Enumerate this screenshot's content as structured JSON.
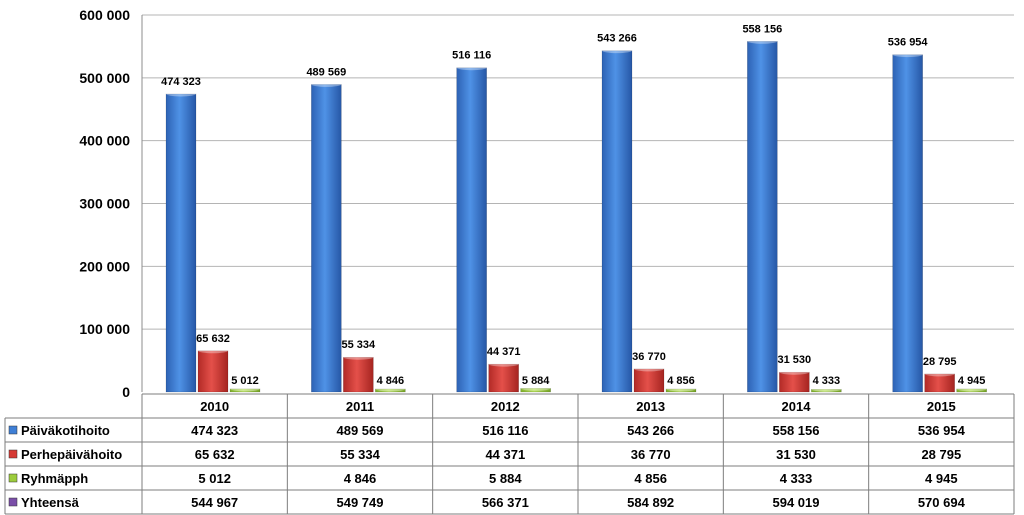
{
  "chart_data": {
    "type": "bar",
    "categories": [
      "2010",
      "2011",
      "2012",
      "2013",
      "2014",
      "2015"
    ],
    "ylim": [
      0,
      600000
    ],
    "yticks": [
      0,
      100000,
      200000,
      300000,
      400000,
      500000,
      600000
    ],
    "ytick_labels": [
      "0",
      "100 000",
      "200 000",
      "300 000",
      "400 000",
      "500 000",
      "600 000"
    ],
    "grid": true,
    "legend": "data-table",
    "series": [
      {
        "name": "Päiväkotihoito",
        "color": "#3f7fd6",
        "values": [
          474323,
          489569,
          516116,
          543266,
          558156,
          536954
        ],
        "labels": [
          "474 323",
          "489 569",
          "516 116",
          "543 266",
          "558 156",
          "536 954"
        ],
        "show_bars": true
      },
      {
        "name": "Perhepäivähoito",
        "color": "#d63a35",
        "values": [
          65632,
          55334,
          44371,
          36770,
          31530,
          28795
        ],
        "labels": [
          "65 632",
          "55 334",
          "44 371",
          "36 770",
          "31 530",
          "28 795"
        ],
        "show_bars": true
      },
      {
        "name": "Ryhmäpph",
        "color": "#9ccc3c",
        "values": [
          5012,
          4846,
          5884,
          4856,
          4333,
          4945
        ],
        "labels": [
          "5 012",
          "4 846",
          "5 884",
          "4 856",
          "4 333",
          "4 945"
        ],
        "show_bars": true
      },
      {
        "name": "Yhteensä",
        "color": "#7a4ea8",
        "values": [
          544967,
          549749,
          566371,
          584892,
          594019,
          570694
        ],
        "labels": [
          "544 967",
          "549 749",
          "566 371",
          "584 892",
          "594 019",
          "570 694"
        ],
        "show_bars": false
      }
    ]
  }
}
